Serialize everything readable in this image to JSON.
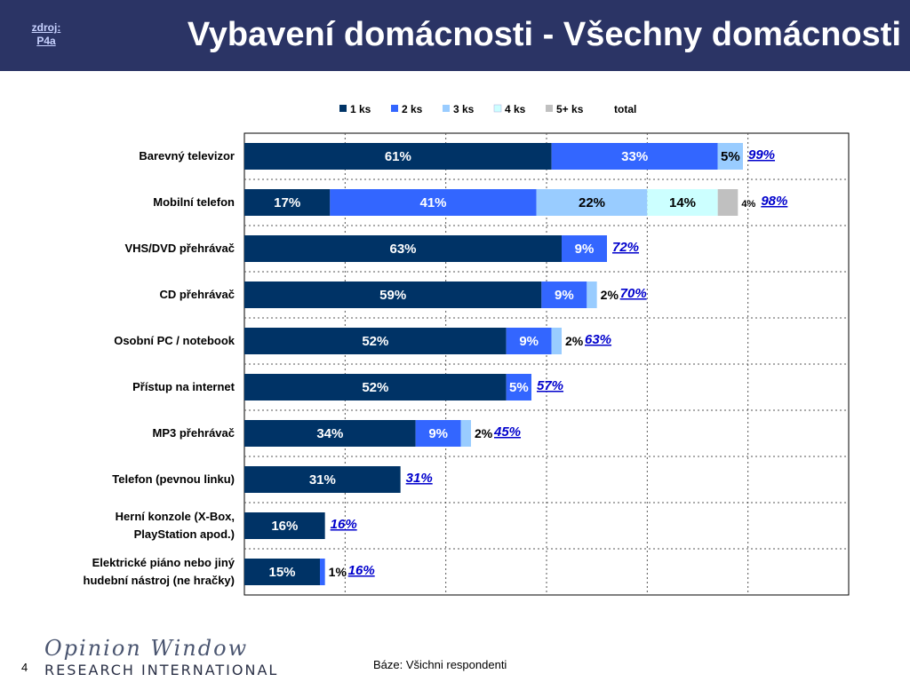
{
  "header": {
    "source_label_line1": "zdroj:",
    "source_label_line2": "P4a",
    "title": "Vybavení domácnosti - Všechny domácnosti"
  },
  "colors": {
    "header_bg": "#2b3465",
    "s1": "#003366",
    "s2": "#3366ff",
    "s3": "#99ccff",
    "s4": "#ccffff",
    "s5": "#c0c0c0",
    "total_text": "#0000cc"
  },
  "chart_data": {
    "type": "bar",
    "orientation": "horizontal",
    "stacked": true,
    "xlim": [
      0,
      120
    ],
    "grid": true,
    "legend_position": "top",
    "categories": [
      "Barevný televizor",
      "Mobilní telefon",
      "VHS/DVD přehrávač",
      "CD přehrávač",
      "Osobní PC / notebook",
      "Přístup na internet",
      "MP3 přehrávač",
      "Telefon (pevnou linku)",
      "Herní konzole (X-Box, PlayStation apod.)",
      "Elektrické piáno nebo jiný hudební nástroj (ne hračky)"
    ],
    "series": [
      {
        "name": "1 ks",
        "values": [
          61,
          17,
          63,
          59,
          52,
          52,
          34,
          31,
          16,
          15
        ]
      },
      {
        "name": "2 ks",
        "values": [
          33,
          41,
          9,
          9,
          9,
          5,
          9,
          0,
          0,
          1
        ]
      },
      {
        "name": "3 ks",
        "values": [
          5,
          22,
          0,
          2,
          2,
          0,
          2,
          0,
          0,
          0
        ]
      },
      {
        "name": "4 ks",
        "values": [
          0,
          14,
          0,
          0,
          0,
          0,
          0,
          0,
          0,
          0
        ]
      },
      {
        "name": "5+ ks",
        "values": [
          0,
          4,
          0,
          0,
          0,
          0,
          0,
          0,
          0,
          0
        ]
      }
    ],
    "total_legend_label": "total",
    "totals": [
      99,
      98,
      72,
      70,
      63,
      57,
      45,
      31,
      16,
      16
    ],
    "value_suffix": "%"
  },
  "footer": {
    "page_number": "4",
    "base_note": "Báze: Všichni respondenti",
    "logo_script": "Opinion Window",
    "logo_company": "RESEARCH INTERNATIONAL"
  }
}
